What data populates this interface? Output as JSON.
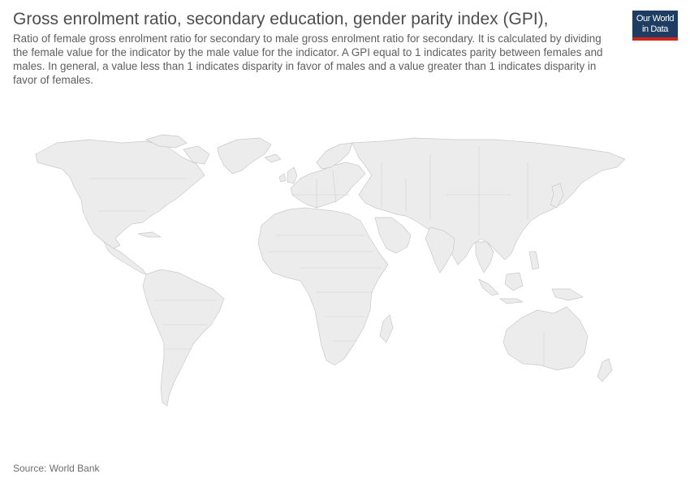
{
  "header": {
    "title": "Gross enrolment ratio, secondary education, gender parity index (GPI),",
    "subtitle": "Ratio of female gross enrolment ratio for secondary to male gross enrolment ratio for secondary. It is calculated by dividing the female value for the indicator by the male value for the indicator. A GPI equal to 1 indicates parity between females and males. In general, a value less than 1 indicates disparity in favor of males and a value greater than 1 indicates disparity in favor of females."
  },
  "logo": {
    "line1": "Our World",
    "line2": "in Data"
  },
  "map": {
    "land_color": "#ececec",
    "border_color": "#c9c9c9",
    "data_available": false
  },
  "footer": {
    "source": "Source: World Bank"
  },
  "colors": {
    "logo_bg": "#1d3d63",
    "logo_accent": "#ce261e"
  }
}
